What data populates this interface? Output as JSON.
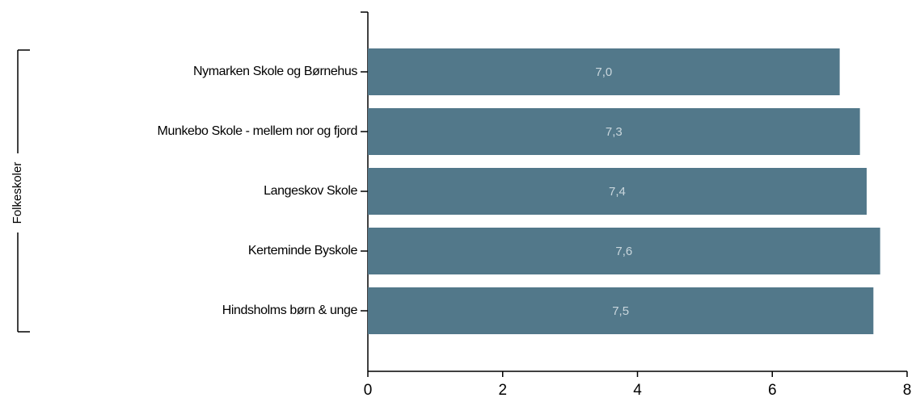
{
  "chart_data": {
    "type": "barh",
    "group_label": "Folkeskoler",
    "categories": [
      "Nymarken Skole og Børnehus",
      "Munkebo Skole - mellem nor og fjord",
      "Langeskov Skole",
      "Kerteminde Byskole",
      "Hindsholms børn & unge"
    ],
    "values": [
      7.0,
      7.3,
      7.4,
      7.6,
      7.5
    ],
    "value_labels": [
      "7,0",
      "7,3",
      "7,4",
      "7,6",
      "7,5"
    ],
    "color": "#52788a",
    "xlim": [
      0,
      8
    ],
    "xticks": [
      0,
      2,
      4,
      6,
      8
    ]
  }
}
